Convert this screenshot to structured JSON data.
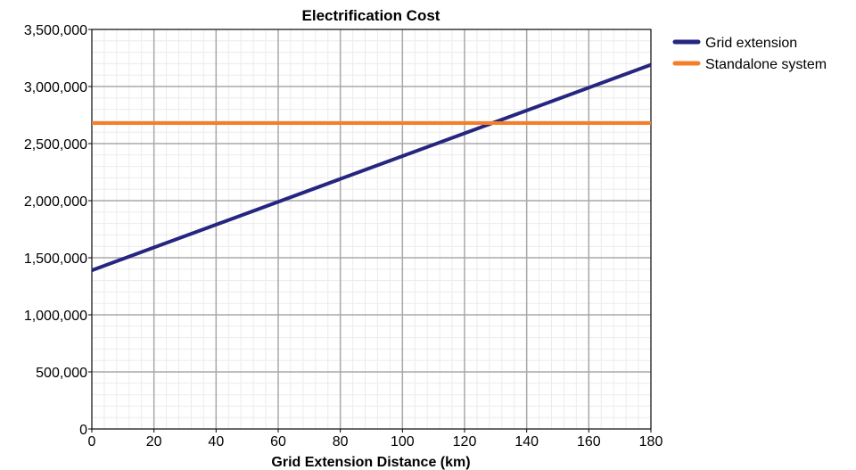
{
  "chart_data": {
    "type": "line",
    "title": "Electrification Cost",
    "xlabel": "Grid Extension Distance (km)",
    "ylabel": "",
    "xlim": [
      0,
      180
    ],
    "ylim": [
      0,
      3500000
    ],
    "x_ticks": [
      "0",
      "20",
      "40",
      "60",
      "80",
      "100",
      "120",
      "140",
      "160",
      "180"
    ],
    "y_ticks": [
      "0",
      "500,000",
      "1,000,000",
      "1,500,000",
      "2,000,000",
      "2,500,000",
      "3,000,000",
      "3,500,000"
    ],
    "grid": true,
    "legend_position": "right",
    "series": [
      {
        "name": "Grid extension",
        "color": "#262680",
        "x": [
          0,
          180
        ],
        "y": [
          1390000,
          3190000
        ]
      },
      {
        "name": "Standalone system",
        "color": "#F47F2A",
        "x": [
          0,
          180
        ],
        "y": [
          2680000,
          2680000
        ]
      }
    ]
  }
}
